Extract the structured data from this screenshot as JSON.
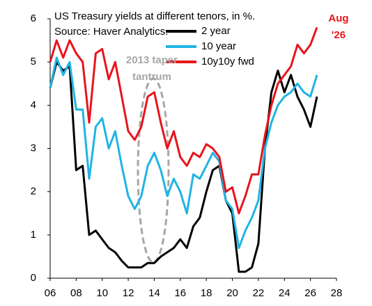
{
  "chart_data": {
    "type": "line",
    "title": "US Treasury yields at different tenors, in %.",
    "subtitle": "Source: Haver Analytics.",
    "annotations": [
      {
        "lines": [
          "2013 taper",
          "tantrum"
        ],
        "color": "#a6a6a6"
      },
      {
        "lines": [
          "Aug",
          "'26"
        ],
        "color": "#e8141c"
      }
    ],
    "x": [
      6.0,
      6.5,
      7.0,
      7.5,
      8.0,
      8.5,
      9.0,
      9.5,
      10.0,
      10.5,
      11.0,
      11.5,
      12.0,
      12.5,
      13.0,
      13.5,
      14.0,
      14.5,
      15.0,
      15.5,
      16.0,
      16.5,
      17.0,
      17.5,
      18.0,
      18.5,
      19.0,
      19.5,
      20.0,
      20.5,
      21.0,
      21.5,
      22.0,
      22.5,
      23.0,
      23.5,
      24.0,
      24.5,
      25.0,
      25.5,
      26.0,
      26.5
    ],
    "series": [
      {
        "name": "2 year",
        "color": "#000000",
        "values": [
          4.4,
          5.0,
          4.8,
          4.9,
          2.5,
          2.6,
          1.0,
          1.1,
          0.9,
          0.7,
          0.6,
          0.4,
          0.25,
          0.25,
          0.25,
          0.35,
          0.35,
          0.5,
          0.6,
          0.7,
          0.9,
          0.7,
          1.2,
          1.4,
          2.0,
          2.5,
          2.6,
          1.8,
          1.5,
          0.15,
          0.15,
          0.25,
          0.8,
          3.0,
          4.3,
          4.8,
          4.3,
          4.7,
          4.2,
          3.9,
          3.5,
          4.2
        ]
      },
      {
        "name": "10 year",
        "color": "#1fb4e4",
        "values": [
          4.4,
          5.1,
          4.7,
          5.0,
          3.9,
          3.9,
          2.3,
          3.5,
          3.7,
          3.0,
          3.4,
          2.6,
          1.9,
          1.6,
          1.9,
          2.6,
          2.9,
          2.5,
          1.9,
          2.3,
          2.0,
          1.5,
          2.4,
          2.3,
          2.6,
          2.9,
          2.7,
          1.8,
          1.6,
          0.7,
          1.1,
          1.4,
          1.8,
          3.0,
          3.6,
          4.0,
          4.2,
          4.3,
          4.5,
          4.3,
          4.2,
          4.7
        ]
      },
      {
        "name": "10y10y fwd",
        "color": "#e8141c",
        "values": [
          5.0,
          5.5,
          5.1,
          5.5,
          5.2,
          5.0,
          3.6,
          5.2,
          5.3,
          4.6,
          5.0,
          4.2,
          3.4,
          3.2,
          3.5,
          4.2,
          4.3,
          3.6,
          3.0,
          3.4,
          2.8,
          2.6,
          2.9,
          2.8,
          3.1,
          3.0,
          2.8,
          2.0,
          2.1,
          1.5,
          1.9,
          2.4,
          2.4,
          3.3,
          4.0,
          4.5,
          4.7,
          4.9,
          5.4,
          5.2,
          5.4,
          5.8
        ]
      }
    ],
    "xlim": [
      6,
      28
    ],
    "xticks": [
      {
        "value": 6,
        "label": "06"
      },
      {
        "value": 8,
        "label": "08"
      },
      10,
      12,
      14,
      16,
      18,
      20,
      22,
      24,
      26,
      28
    ],
    "ylim": [
      0,
      6
    ],
    "yticks": [
      0,
      1,
      2,
      3,
      4,
      5,
      6
    ],
    "grid": false,
    "legend": "upper right"
  }
}
